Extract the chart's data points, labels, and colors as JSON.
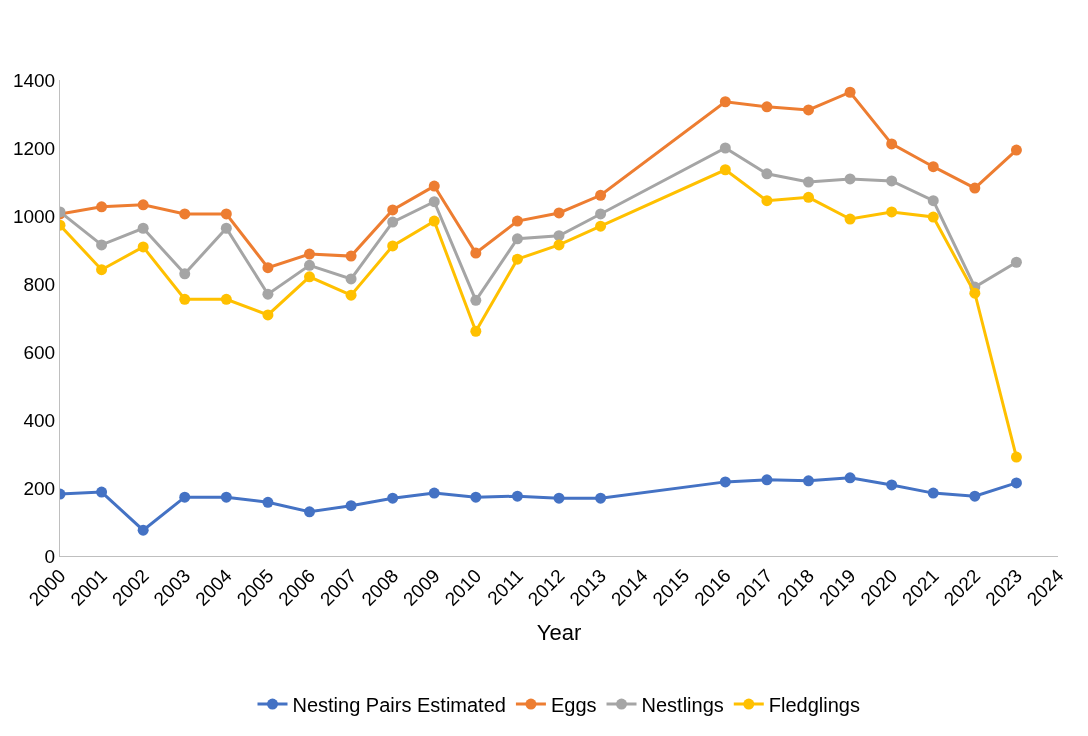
{
  "chart_data": {
    "type": "line",
    "xlabel": "Year",
    "x": [
      2000,
      2001,
      2002,
      2003,
      2004,
      2005,
      2006,
      2007,
      2008,
      2009,
      2010,
      2011,
      2012,
      2013,
      2016,
      2017,
      2018,
      2019,
      2020,
      2021,
      2022,
      2023
    ],
    "series": [
      {
        "name": "Nesting Pairs Estimated",
        "color": "#4472c4",
        "values": [
          182,
          188,
          76,
          173,
          173,
          158,
          130,
          148,
          170,
          185,
          173,
          176,
          170,
          170,
          218,
          224,
          221,
          230,
          209,
          185,
          176,
          215
        ]
      },
      {
        "name": "Eggs",
        "color": "#ed7d31",
        "values": [
          1006,
          1027,
          1033,
          1006,
          1006,
          848,
          888,
          882,
          1018,
          1088,
          891,
          985,
          1009,
          1061,
          1336,
          1321,
          1312,
          1364,
          1212,
          1145,
          1082,
          1194
        ]
      },
      {
        "name": "Nestlings",
        "color": "#a5a5a5",
        "values": [
          1012,
          915,
          964,
          830,
          964,
          770,
          855,
          815,
          982,
          1042,
          752,
          933,
          942,
          1006,
          1200,
          1124,
          1100,
          1109,
          1103,
          1045,
          791,
          864
        ]
      },
      {
        "name": "Fledglings",
        "color": "#ffc000",
        "values": [
          973,
          842,
          909,
          755,
          755,
          709,
          821,
          767,
          912,
          985,
          661,
          873,
          915,
          970,
          1136,
          1045,
          1055,
          991,
          1012,
          997,
          773,
          291
        ]
      }
    ],
    "xlim": [
      2000,
      2024
    ],
    "xticks": [
      2000,
      2001,
      2002,
      2003,
      2004,
      2005,
      2006,
      2007,
      2008,
      2009,
      2010,
      2011,
      2012,
      2013,
      2014,
      2015,
      2016,
      2017,
      2018,
      2019,
      2020,
      2021,
      2022,
      2023,
      2024
    ],
    "ylim": [
      0,
      1400
    ],
    "yticks": [
      0,
      200,
      400,
      600,
      800,
      1000,
      1200,
      1400
    ],
    "legend": "bottom",
    "marker": "circle",
    "line_style": "solid"
  }
}
